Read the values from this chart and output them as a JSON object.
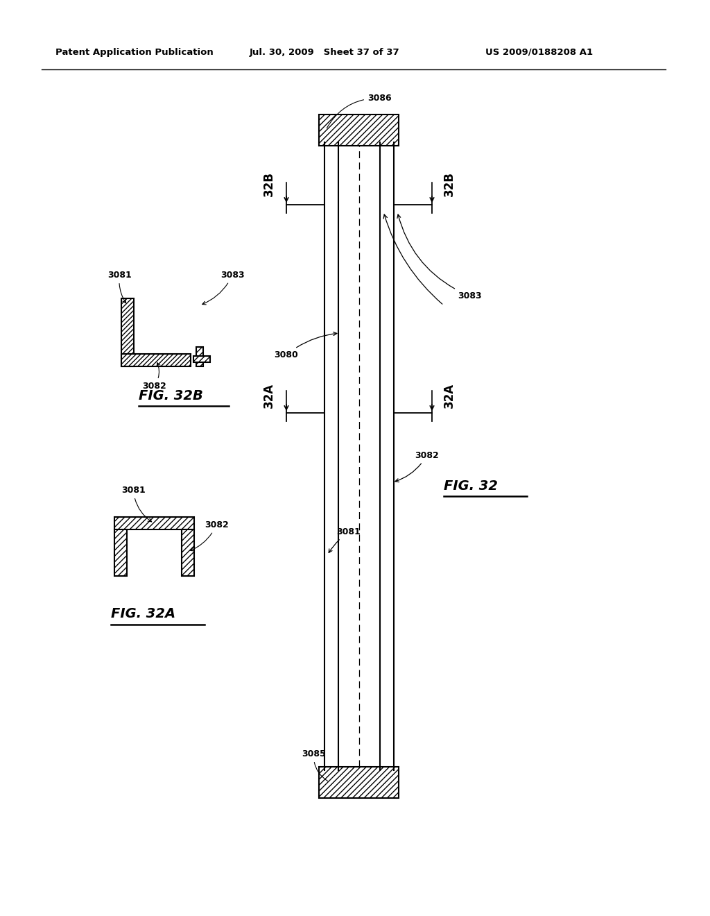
{
  "header_left": "Patent Application Publication",
  "header_mid": "Jul. 30, 2009   Sheet 37 of 37",
  "header_right": "US 2009/0188208 A1",
  "bg_color": "#ffffff",
  "line_color": "#000000"
}
